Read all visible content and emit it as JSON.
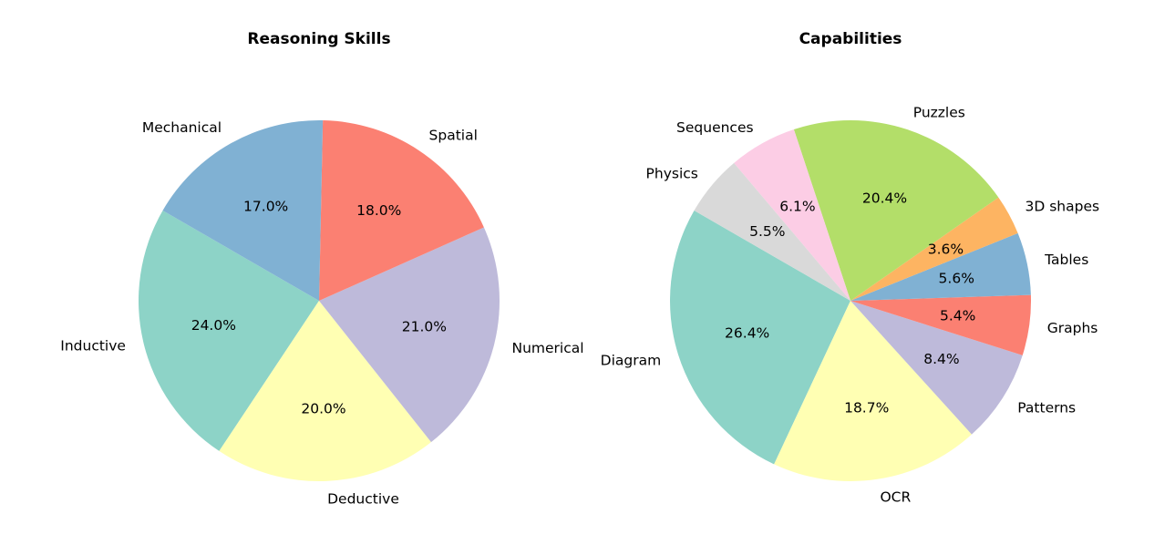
{
  "chart_data": [
    {
      "type": "pie",
      "title": "Reasoning Skills",
      "slices": [
        {
          "label": "Inductive",
          "value": 24.0,
          "pct_label": "24.0%",
          "color": "#8dd3c7"
        },
        {
          "label": "Deductive",
          "value": 20.0,
          "pct_label": "20.0%",
          "color": "#ffffb3"
        },
        {
          "label": "Numerical",
          "value": 21.0,
          "pct_label": "21.0%",
          "color": "#bebada"
        },
        {
          "label": "Spatial",
          "value": 18.0,
          "pct_label": "18.0%",
          "color": "#fb8072"
        },
        {
          "label": "Mechanical",
          "value": 17.0,
          "pct_label": "17.0%",
          "color": "#80b1d3"
        }
      ]
    },
    {
      "type": "pie",
      "title": "Capabilities",
      "slices": [
        {
          "label": "Diagram",
          "value": 26.4,
          "pct_label": "26.4%",
          "color": "#8dd3c7"
        },
        {
          "label": "OCR",
          "value": 18.7,
          "pct_label": "18.7%",
          "color": "#ffffb3"
        },
        {
          "label": "Patterns",
          "value": 8.4,
          "pct_label": "8.4%",
          "color": "#bebada"
        },
        {
          "label": "Graphs",
          "value": 5.4,
          "pct_label": "5.4%",
          "color": "#fb8072"
        },
        {
          "label": "Tables",
          "value": 5.6,
          "pct_label": "5.6%",
          "color": "#80b1d3"
        },
        {
          "label": "3D shapes",
          "value": 3.6,
          "pct_label": "3.6%",
          "color": "#fdb462"
        },
        {
          "label": "Puzzles",
          "value": 20.4,
          "pct_label": "20.4%",
          "color": "#b3de69"
        },
        {
          "label": "Sequences",
          "value": 6.1,
          "pct_label": "6.1%",
          "color": "#fccde5"
        },
        {
          "label": "Physics",
          "value": 5.5,
          "pct_label": "5.5%",
          "color": "#d9d9d9"
        }
      ]
    }
  ]
}
